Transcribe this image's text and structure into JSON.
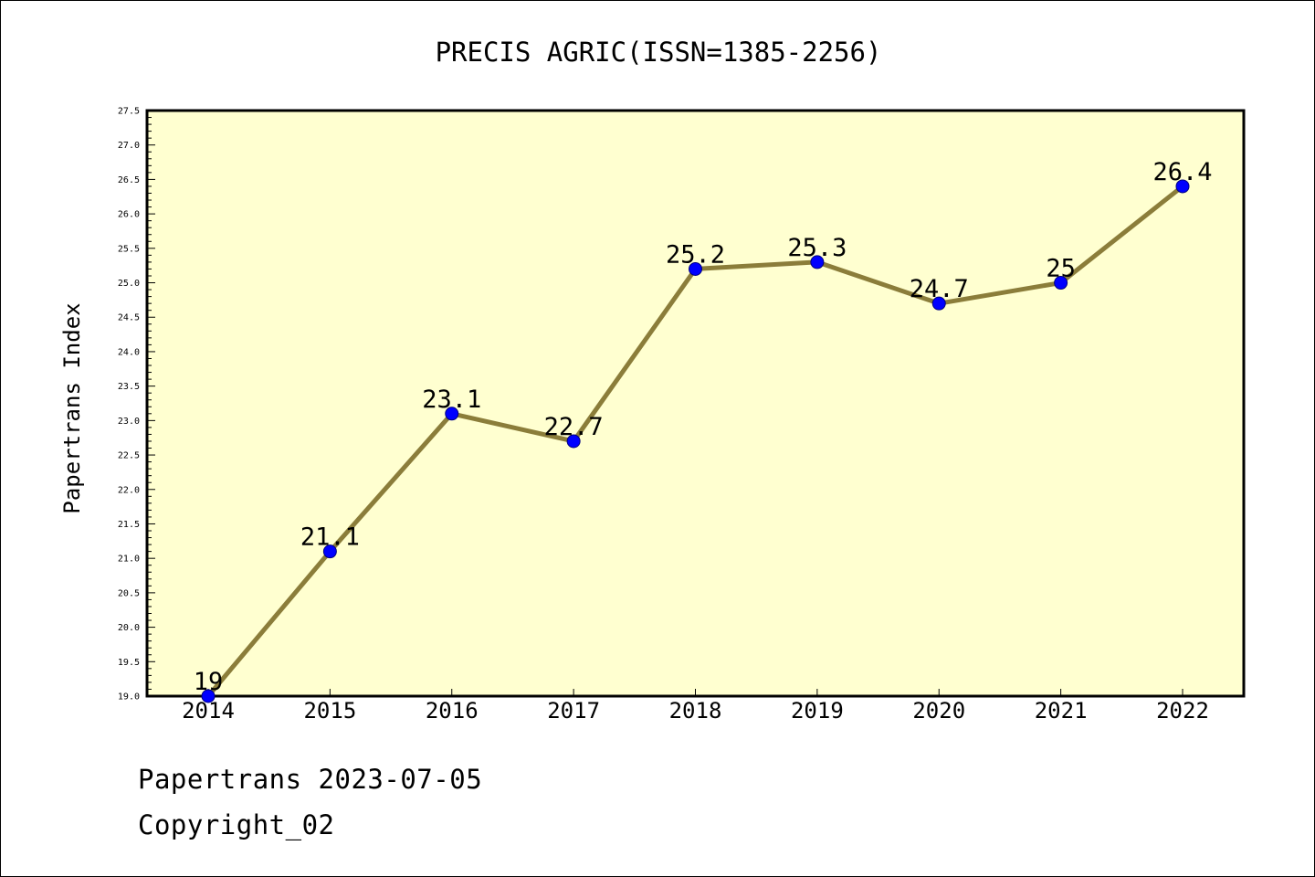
{
  "chart_data": {
    "type": "line",
    "title": "PRECIS AGRIC(ISSN=1385-2256)",
    "ylabel": "Papertrans Index",
    "xlabel": "",
    "categories": [
      "2014",
      "2015",
      "2016",
      "2017",
      "2018",
      "2019",
      "2020",
      "2021",
      "2022"
    ],
    "values": [
      19,
      21.1,
      23.1,
      22.7,
      25.2,
      25.3,
      24.7,
      25,
      26.4
    ],
    "data_labels": [
      "19",
      "21.1",
      "23.1",
      "22.7",
      "25.2",
      "25.3",
      "24.7",
      "25",
      "26.4"
    ],
    "ylim": [
      19.0,
      27.5
    ],
    "ytick_labels": [
      "19.0",
      "19.5",
      "20.0",
      "20.5",
      "21.0",
      "21.5",
      "22.0",
      "22.5",
      "23.0",
      "23.5",
      "24.0",
      "24.5",
      "25.0",
      "25.5",
      "26.0",
      "26.5",
      "27.0",
      "27.5"
    ],
    "grid": false,
    "legend": "none",
    "colors": {
      "plot_background": "#ffffd0",
      "line": "#8b7d3a",
      "marker": "#0000ff",
      "marker_edge": "#000080"
    }
  },
  "footer": {
    "date_line": "Papertrans 2023-07-05",
    "copyright": "Copyright_02"
  }
}
